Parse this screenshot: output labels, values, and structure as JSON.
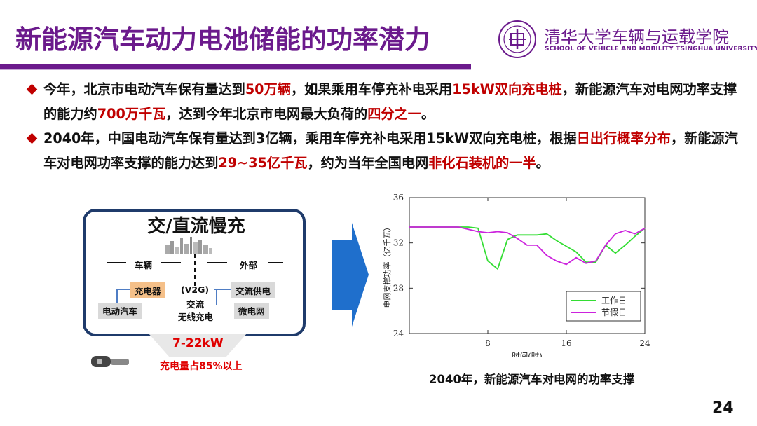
{
  "slide": {
    "title": "新能源汽车动力电池储能的功率潜力",
    "institution_name": "清华大学车辆与运载学院",
    "institution_sub": "SCHOOL OF VEHICLE AND MOBILITY TSINGHUA UNIVERSITY",
    "page_number": "24"
  },
  "bullets": [
    {
      "segments": [
        {
          "text": "今年，北京市电动汽车保有量达到",
          "hl": false
        },
        {
          "text": "50万辆",
          "hl": true
        },
        {
          "text": "，如果乘用车停充补电采用",
          "hl": false
        },
        {
          "text": "15kW双向充电桩",
          "hl": true
        },
        {
          "text": "，新能源汽车对电网功率支撑的能力约",
          "hl": false
        },
        {
          "text": "700万千瓦",
          "hl": true
        },
        {
          "text": "，达到今年北京市电网最大负荷的",
          "hl": false
        },
        {
          "text": "四分之一",
          "hl": true
        },
        {
          "text": "。",
          "hl": false
        }
      ]
    },
    {
      "segments": [
        {
          "text": "2040年，中国电动汽车保有量达到3亿辆，乘用车停充补电采用15kW双向充电桩，根据",
          "hl": false
        },
        {
          "text": "日出行概率分布",
          "hl": true
        },
        {
          "text": "，新能源汽车对电网功率支撑的能力达到",
          "hl": false
        },
        {
          "text": "29~35亿千瓦",
          "hl": true
        },
        {
          "text": "，约为当年全国电网",
          "hl": false
        },
        {
          "text": "非化石装机的一半",
          "hl": true
        },
        {
          "text": "。",
          "hl": false
        }
      ]
    }
  ],
  "diagram": {
    "title": "交/直流慢充",
    "vehicle_label": "车辆",
    "external_label": "外部",
    "charger": "充电器",
    "v2g": "(V2G)",
    "ac_supply": "交流供电",
    "ev": "电动汽车",
    "ac_wireless_1": "交流",
    "ac_wireless_2": "无线充电",
    "microgrid": "微电网",
    "power_range": "7-22kW",
    "charge_share": "充电量占85%以上"
  },
  "colors": {
    "title_purple": "#6b1a8c",
    "highlight_red": "#c00000",
    "workday_green": "#33dd33",
    "holiday_magenta": "#cc22dd",
    "arrow_blue": "#1f6fcc"
  },
  "chart_caption": "2040年，新能源汽车对电网的功率支撑",
  "chart_data": {
    "type": "line",
    "xlabel": "时间(时)",
    "ylabel": "电网支撑功率（亿千瓦）",
    "xlim": [
      0,
      24
    ],
    "ylim": [
      24,
      36
    ],
    "xticks": [
      8,
      16,
      24
    ],
    "yticks": [
      24,
      28,
      32,
      36
    ],
    "grid": false,
    "legend_position": "bottom-right",
    "series": [
      {
        "name": "工作日",
        "color": "#33dd33",
        "x": [
          0,
          1,
          2,
          3,
          4,
          5,
          6,
          7,
          8,
          9,
          10,
          11,
          12,
          13,
          14,
          15,
          16,
          17,
          18,
          19,
          20,
          21,
          22,
          23,
          24
        ],
        "y": [
          33.4,
          33.4,
          33.4,
          33.4,
          33.4,
          33.4,
          33.4,
          33.3,
          30.4,
          29.7,
          32.3,
          32.7,
          32.7,
          32.7,
          32.8,
          32.2,
          31.7,
          31.2,
          30.3,
          30.3,
          31.8,
          31.1,
          31.8,
          32.6,
          33.3
        ]
      },
      {
        "name": "节假日",
        "color": "#cc22dd",
        "x": [
          0,
          1,
          2,
          3,
          4,
          5,
          6,
          7,
          8,
          9,
          10,
          11,
          12,
          13,
          14,
          15,
          16,
          17,
          18,
          19,
          20,
          21,
          22,
          23,
          24
        ],
        "y": [
          33.4,
          33.4,
          33.4,
          33.4,
          33.4,
          33.4,
          33.2,
          33.0,
          32.9,
          33.0,
          32.9,
          32.4,
          31.8,
          31.8,
          30.9,
          30.4,
          30.1,
          30.7,
          30.2,
          30.4,
          31.8,
          32.8,
          33.1,
          32.8,
          33.3
        ]
      }
    ]
  }
}
